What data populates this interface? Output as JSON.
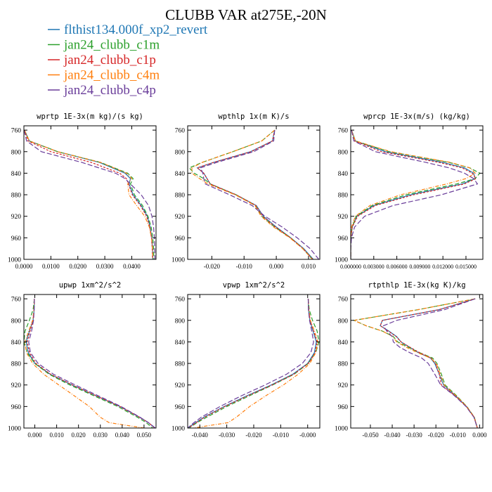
{
  "figure": {
    "title": "CLUBB VAR at275E,-20N"
  },
  "legend": [
    {
      "name": "flthist134.000f_xp2_revert",
      "color": "#1f77b4"
    },
    {
      "name": "jan24_clubb_c1m",
      "color": "#2ca02c"
    },
    {
      "name": "jan24_clubb_c1p",
      "color": "#d62728"
    },
    {
      "name": "jan24_clubb_c4m",
      "color": "#ff7f0e"
    },
    {
      "name": "jan24_clubb_c4p",
      "color": "#6a3d9a"
    }
  ],
  "chart_data": [
    {
      "type": "line",
      "title": "wprtp  1E-3x(m kg)/(s kg)",
      "xlim": [
        0.0,
        0.049
      ],
      "xticks": [
        0.0,
        0.01,
        0.02,
        0.03,
        0.04
      ],
      "xticklabels": [
        "0.0000",
        "0.0100",
        "0.0200",
        "0.0300",
        "0.0400"
      ],
      "ylim": [
        1000,
        752
      ],
      "yticks": [
        760,
        800,
        840,
        880,
        920,
        960,
        1000
      ],
      "y": [
        760,
        780,
        800,
        820,
        840,
        850,
        860,
        880,
        900,
        920,
        940,
        960,
        980,
        1000
      ],
      "series": [
        {
          "name": "flthist134.000f_xp2_revert",
          "values": [
            0.0002,
            0.002,
            0.0125,
            0.028,
            0.0375,
            0.0395,
            0.039,
            0.0405,
            0.0435,
            0.0458,
            0.0468,
            0.0474,
            0.0477,
            0.0478
          ]
        },
        {
          "name": "jan24_clubb_c1m",
          "values": [
            0.0002,
            0.002,
            0.0125,
            0.0285,
            0.0385,
            0.0405,
            0.0395,
            0.041,
            0.044,
            0.046,
            0.0472,
            0.0478,
            0.0481,
            0.0482
          ]
        },
        {
          "name": "jan24_clubb_c1p",
          "values": [
            0.0002,
            0.0015,
            0.01,
            0.025,
            0.0355,
            0.038,
            0.0388,
            0.0402,
            0.0432,
            0.0455,
            0.0467,
            0.0473,
            0.0476,
            0.0477
          ]
        },
        {
          "name": "jan24_clubb_c4m",
          "values": [
            0.0002,
            0.002,
            0.0125,
            0.0285,
            0.038,
            0.04,
            0.0385,
            0.039,
            0.0418,
            0.0448,
            0.0465,
            0.0473,
            0.0477,
            0.0478
          ]
        },
        {
          "name": "jan24_clubb_c4p",
          "values": [
            0.0001,
            0.001,
            0.0065,
            0.0215,
            0.034,
            0.0375,
            0.0395,
            0.0435,
            0.0462,
            0.0475,
            0.0481,
            0.0484,
            0.0485,
            0.0486
          ]
        }
      ]
    },
    {
      "type": "line",
      "title": "wpthlp  1x(m K)/s",
      "xlim": [
        -0.0275,
        0.0135
      ],
      "xticks": [
        -0.02,
        -0.01,
        0.0,
        0.01
      ],
      "xticklabels": [
        "-0.020",
        "-0.010",
        "0.000",
        "0.010"
      ],
      "ylim": [
        1000,
        752
      ],
      "yticks": [
        760,
        800,
        840,
        880,
        920,
        960,
        1000
      ],
      "y": [
        760,
        780,
        800,
        820,
        830,
        840,
        850,
        860,
        880,
        900,
        920,
        940,
        960,
        980,
        1000
      ],
      "series": [
        {
          "name": "flthist134.000f_xp2_revert",
          "values": [
            -0.0005,
            -0.0012,
            -0.008,
            -0.0195,
            -0.0245,
            -0.0225,
            -0.0215,
            -0.0205,
            -0.0125,
            -0.0062,
            -0.004,
            0.0,
            0.0045,
            0.0085,
            0.0115
          ]
        },
        {
          "name": "jan24_clubb_c1m",
          "values": [
            -0.0005,
            -0.0045,
            -0.0135,
            -0.023,
            -0.027,
            -0.0255,
            -0.0225,
            -0.0205,
            -0.0125,
            -0.0065,
            -0.0045,
            -0.0005,
            0.0045,
            0.0082,
            0.0112
          ]
        },
        {
          "name": "jan24_clubb_c1p",
          "values": [
            -0.0005,
            -0.0012,
            -0.0078,
            -0.0195,
            -0.0245,
            -0.0225,
            -0.0215,
            -0.0205,
            -0.0125,
            -0.0063,
            -0.0042,
            -0.0002,
            0.0044,
            0.0083,
            0.0113
          ]
        },
        {
          "name": "jan24_clubb_c4m",
          "values": [
            -0.0005,
            -0.0045,
            -0.0135,
            -0.023,
            -0.0262,
            -0.0262,
            -0.0238,
            -0.0212,
            -0.0128,
            -0.0066,
            -0.0047,
            -0.0008,
            0.0042,
            0.0082,
            0.0112
          ]
        },
        {
          "name": "jan24_clubb_c4p",
          "values": [
            -0.0005,
            -0.0008,
            -0.007,
            -0.0185,
            -0.0235,
            -0.0228,
            -0.0225,
            -0.022,
            -0.0145,
            -0.0075,
            -0.0035,
            0.0018,
            0.0065,
            0.0105,
            0.0132
          ]
        }
      ]
    },
    {
      "type": "line",
      "title": "wprcp  1E-3x(m/s) (kg/kg)",
      "xlim": [
        0.0,
        0.0172
      ],
      "xticks": [
        0.0,
        0.003,
        0.006,
        0.009,
        0.012,
        0.015
      ],
      "xticklabels": [
        "0.000000",
        "0.003000",
        "0.006000",
        "0.009000",
        "0.012000",
        "0.015000"
      ],
      "ylim": [
        1000,
        752
      ],
      "yticks": [
        760,
        800,
        840,
        880,
        920,
        960,
        1000
      ],
      "y": [
        760,
        780,
        800,
        820,
        830,
        840,
        850,
        860,
        880,
        900,
        920,
        940,
        960,
        980,
        1000
      ],
      "series": [
        {
          "name": "flthist134.000f_xp2_revert",
          "values": [
            0.0001,
            0.0006,
            0.0045,
            0.012,
            0.0148,
            0.016,
            0.0162,
            0.0145,
            0.0078,
            0.003,
            0.0008,
            0.0002,
            0.0,
            0.0,
            0.0
          ]
        },
        {
          "name": "jan24_clubb_c1m",
          "values": [
            0.0001,
            0.0006,
            0.005,
            0.0128,
            0.0155,
            0.0168,
            0.0162,
            0.0138,
            0.0072,
            0.0028,
            0.0007,
            0.0002,
            0.0,
            0.0,
            0.0
          ]
        },
        {
          "name": "jan24_clubb_c1p",
          "values": [
            0.0001,
            0.0005,
            0.004,
            0.0115,
            0.0145,
            0.0158,
            0.0163,
            0.0148,
            0.0082,
            0.0032,
            0.0009,
            0.0002,
            0.0,
            0.0,
            0.0
          ]
        },
        {
          "name": "jan24_clubb_c4m",
          "values": [
            0.0001,
            0.0006,
            0.0052,
            0.013,
            0.0155,
            0.0162,
            0.015,
            0.0125,
            0.0065,
            0.0025,
            0.0006,
            0.0001,
            0.0,
            0.0,
            0.0
          ]
        },
        {
          "name": "jan24_clubb_c4p",
          "values": [
            0.0001,
            0.0004,
            0.0032,
            0.0098,
            0.0128,
            0.0148,
            0.016,
            0.0165,
            0.0118,
            0.0055,
            0.0018,
            0.0005,
            0.0001,
            0.0,
            0.0
          ]
        }
      ]
    },
    {
      "type": "line",
      "title": "upwp  1xm^2/s^2",
      "xlim": [
        -0.005,
        0.0555
      ],
      "xticks": [
        0.0,
        0.01,
        0.02,
        0.03,
        0.04,
        0.05
      ],
      "xticklabels": [
        "0.000",
        "0.010",
        "0.020",
        "0.030",
        "0.040",
        "0.050"
      ],
      "ylim": [
        1000,
        752
      ],
      "yticks": [
        760,
        800,
        840,
        880,
        920,
        960,
        1000
      ],
      "y": [
        760,
        780,
        800,
        820,
        840,
        860,
        880,
        900,
        920,
        940,
        960,
        980,
        990,
        1000
      ],
      "series": [
        {
          "name": "flthist134.000f_xp2_revert",
          "values": [
            -0.0002,
            -0.0003,
            -0.0008,
            -0.0025,
            -0.004,
            -0.003,
            0.0,
            0.007,
            0.017,
            0.028,
            0.039,
            0.048,
            0.052,
            0.055
          ]
        },
        {
          "name": "jan24_clubb_c1m",
          "values": [
            -0.0002,
            -0.0008,
            -0.0025,
            -0.0045,
            -0.005,
            -0.0035,
            0.0,
            0.0065,
            0.016,
            0.027,
            0.038,
            0.047,
            0.051,
            0.054
          ]
        },
        {
          "name": "jan24_clubb_c1p",
          "values": [
            -0.0002,
            -0.0004,
            -0.0008,
            -0.0022,
            -0.0035,
            -0.0025,
            0.0005,
            0.0072,
            0.0172,
            0.028,
            0.039,
            0.048,
            0.052,
            0.055
          ]
        },
        {
          "name": "jan24_clubb_c4m",
          "values": [
            -0.0002,
            -0.0004,
            -0.001,
            -0.0028,
            -0.0045,
            -0.0038,
            -0.001,
            0.004,
            0.011,
            0.018,
            0.025,
            0.03,
            0.034,
            0.05
          ]
        },
        {
          "name": "jan24_clubb_c4p",
          "values": [
            -0.0002,
            -0.0003,
            -0.0006,
            -0.0015,
            -0.0028,
            -0.002,
            0.0015,
            0.0085,
            0.0185,
            0.029,
            0.0395,
            0.0482,
            0.052,
            0.0552
          ]
        }
      ]
    },
    {
      "type": "line",
      "title": "vpwp  1xm^2/s^2",
      "xlim": [
        -0.0445,
        0.0045
      ],
      "xticks": [
        -0.04,
        -0.03,
        -0.02,
        -0.01,
        0.0
      ],
      "xticklabels": [
        "-0.040",
        "-0.030",
        "-0.020",
        "-0.010",
        "-0.000"
      ],
      "ylim": [
        1000,
        752
      ],
      "yticks": [
        760,
        800,
        840,
        880,
        920,
        960,
        1000
      ],
      "y": [
        760,
        780,
        800,
        820,
        840,
        860,
        880,
        900,
        920,
        940,
        960,
        980,
        990,
        1000
      ],
      "series": [
        {
          "name": "flthist134.000f_xp2_revert",
          "values": [
            0.0002,
            0.0003,
            0.0008,
            0.002,
            0.0032,
            0.0025,
            0.0,
            -0.0055,
            -0.0135,
            -0.0225,
            -0.031,
            -0.0385,
            -0.0415,
            -0.0445
          ]
        },
        {
          "name": "jan24_clubb_c1m",
          "values": [
            0.0002,
            0.0006,
            0.0018,
            0.0035,
            0.0042,
            0.003,
            0.0002,
            -0.005,
            -0.013,
            -0.0215,
            -0.03,
            -0.0375,
            -0.041,
            -0.044
          ]
        },
        {
          "name": "jan24_clubb_c1p",
          "values": [
            0.0002,
            0.0004,
            0.0009,
            0.0022,
            0.0035,
            0.0028,
            0.0002,
            -0.0052,
            -0.0132,
            -0.0222,
            -0.0308,
            -0.0383,
            -0.0413,
            -0.0443
          ]
        },
        {
          "name": "jan24_clubb_c4m",
          "values": [
            0.0002,
            0.0004,
            0.001,
            0.0025,
            0.0038,
            0.003,
            0.0008,
            -0.0035,
            -0.009,
            -0.0155,
            -0.0215,
            -0.0265,
            -0.0295,
            -0.0425
          ]
        },
        {
          "name": "jan24_clubb_c4p",
          "values": [
            0.0002,
            0.0003,
            0.0007,
            0.0015,
            0.0022,
            0.0012,
            -0.002,
            -0.0078,
            -0.0158,
            -0.0245,
            -0.0325,
            -0.0395,
            -0.0422,
            -0.0445
          ]
        }
      ]
    },
    {
      "type": "line",
      "title": "rtpthlp  1E-3x(kg K)/kg",
      "xlim": [
        -0.059,
        0.0015
      ],
      "xticks": [
        -0.05,
        -0.04,
        -0.03,
        -0.02,
        -0.01,
        0.0
      ],
      "xticklabels": [
        "-0.050",
        "-0.040",
        "-0.030",
        "-0.020",
        "-0.010",
        "0.000"
      ],
      "ylim": [
        1000,
        752
      ],
      "yticks": [
        760,
        800,
        840,
        880,
        920,
        960,
        1000
      ],
      "y": [
        760,
        780,
        800,
        810,
        820,
        830,
        840,
        850,
        860,
        870,
        880,
        900,
        920,
        940,
        960,
        980,
        1000
      ],
      "series": [
        {
          "name": "flthist134.000f_xp2_revert",
          "values": [
            -0.002,
            -0.0185,
            -0.0445,
            -0.0455,
            -0.0415,
            -0.038,
            -0.036,
            -0.032,
            -0.028,
            -0.0225,
            -0.0205,
            -0.0185,
            -0.0165,
            -0.011,
            -0.006,
            -0.0025,
            -0.001
          ]
        },
        {
          "name": "jan24_clubb_c1m",
          "values": [
            -0.002,
            -0.028,
            -0.0575,
            -0.052,
            -0.0445,
            -0.0395,
            -0.0375,
            -0.0325,
            -0.0275,
            -0.0215,
            -0.0195,
            -0.0175,
            -0.0158,
            -0.0105,
            -0.0058,
            -0.0024,
            -0.001
          ]
        },
        {
          "name": "jan24_clubb_c1p",
          "values": [
            -0.002,
            -0.0185,
            -0.0445,
            -0.0455,
            -0.0418,
            -0.0382,
            -0.036,
            -0.0318,
            -0.0275,
            -0.0222,
            -0.0202,
            -0.0185,
            -0.0175,
            -0.0112,
            -0.006,
            -0.0025,
            -0.001
          ]
        },
        {
          "name": "jan24_clubb_c4m",
          "values": [
            -0.002,
            -0.028,
            -0.0575,
            -0.052,
            -0.0445,
            -0.0398,
            -0.038,
            -0.0335,
            -0.0285,
            -0.0225,
            -0.0198,
            -0.018,
            -0.0162,
            -0.0108,
            -0.0059,
            -0.0024,
            -0.001
          ]
        },
        {
          "name": "jan24_clubb_c4p",
          "values": [
            -0.002,
            -0.016,
            -0.038,
            -0.044,
            -0.0425,
            -0.04,
            -0.0395,
            -0.0365,
            -0.032,
            -0.0265,
            -0.0235,
            -0.0205,
            -0.0178,
            -0.0115,
            -0.0062,
            -0.0026,
            -0.001
          ]
        }
      ]
    }
  ]
}
